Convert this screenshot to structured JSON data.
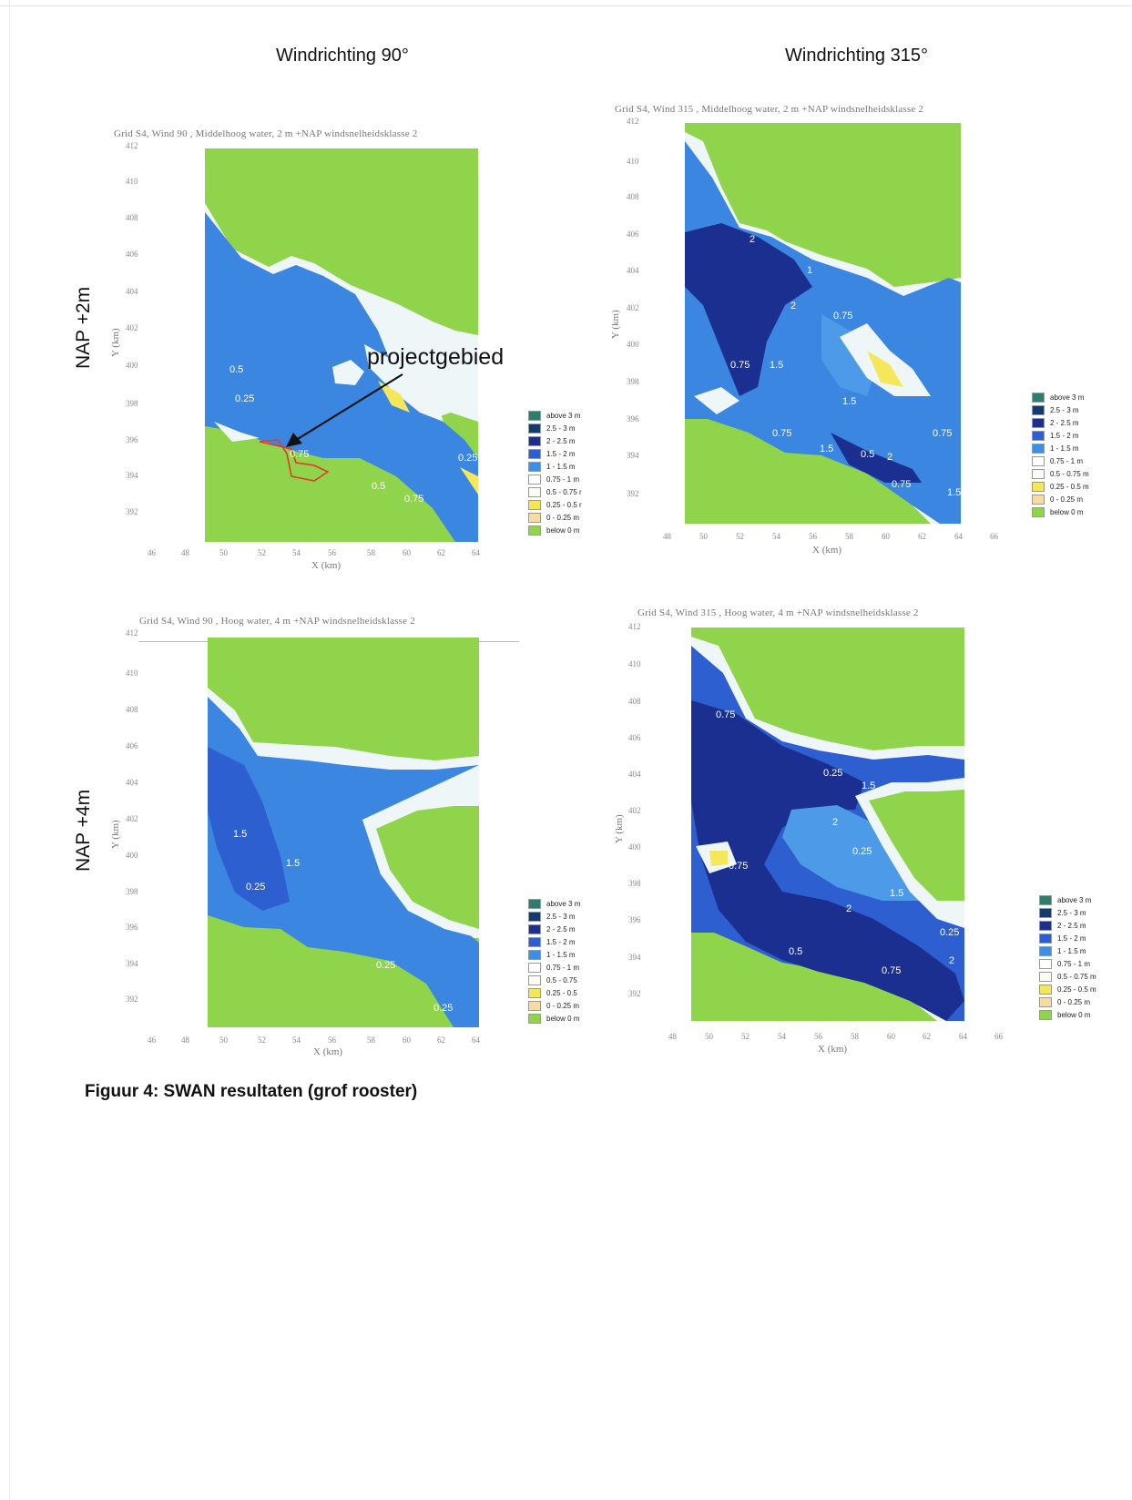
{
  "columns": [
    {
      "title": "Windrichting 90°"
    },
    {
      "title": "Windrichting 315°"
    }
  ],
  "rows": [
    {
      "label": "NAP +2m"
    },
    {
      "label": "NAP +4m"
    }
  ],
  "plots": [
    {
      "title": "Grid S4, Wind 90 , Middelhoog water, 2 m +NAP windsnelheidsklasse 2",
      "yticks": [
        "412",
        "410",
        "408",
        "406",
        "404",
        "402",
        "400",
        "398",
        "396",
        "394",
        "392"
      ],
      "xticks": [
        "46",
        "48",
        "50",
        "52",
        "54",
        "56",
        "58",
        "60",
        "62",
        "64"
      ],
      "xlabel": "X (km)",
      "ylabel": "Y (km)",
      "contour_labels": [
        "0.5",
        "0.25",
        "0.75",
        "0.75",
        "0.25",
        "0.5"
      ]
    },
    {
      "title": "Grid S4, Wind 315 , Middelhoog water, 2 m +NAP windsnelheidsklasse 2",
      "yticks": [
        "412",
        "410",
        "408",
        "406",
        "404",
        "402",
        "400",
        "398",
        "396",
        "394",
        "392"
      ],
      "xticks": [
        "48",
        "50",
        "52",
        "54",
        "56",
        "58",
        "60",
        "62",
        "64",
        "66"
      ],
      "xlabel": "X (km)",
      "ylabel": "Y (km)",
      "contour_labels": [
        "2",
        "1",
        "2",
        "0.75",
        "0.75",
        "1.5",
        "0.75",
        "1.5",
        "2",
        "0.75",
        "1.5",
        "0.75",
        "1.5",
        "0.5"
      ]
    },
    {
      "title": "Grid S4, Wind 90 , Hoog water, 4 m +NAP windsnelheidsklasse 2",
      "yticks": [
        "412",
        "410",
        "408",
        "406",
        "404",
        "402",
        "400",
        "398",
        "396",
        "394",
        "392"
      ],
      "xticks": [
        "46",
        "48",
        "50",
        "52",
        "54",
        "56",
        "58",
        "60",
        "62",
        "64"
      ],
      "xlabel": "X (km)",
      "ylabel": "Y (km)",
      "contour_labels": [
        "1.5",
        "1.5",
        "0.25",
        "0.25",
        "0.25"
      ]
    },
    {
      "title": "Grid S4, Wind 315 , Hoog water, 4 m +NAP windsnelheidsklasse 2",
      "yticks": [
        "412",
        "410",
        "408",
        "406",
        "404",
        "402",
        "400",
        "398",
        "396",
        "394",
        "392"
      ],
      "xticks": [
        "48",
        "50",
        "52",
        "54",
        "56",
        "58",
        "60",
        "62",
        "64",
        "66"
      ],
      "xlabel": "X (km)",
      "ylabel": "Y (km)",
      "contour_labels": [
        "0.75",
        "0.25",
        "1.5",
        "2",
        "0.25",
        "0.75",
        "1.5",
        "2",
        "0.25",
        "0.5",
        "0.75",
        "2"
      ]
    }
  ],
  "legends": [
    [
      "above 3 m",
      "2.5 - 3 m",
      "2 - 2.5 m",
      "1.5 - 2 m",
      "1 - 1.5 m",
      "0.75 - 1 m",
      "0.5 - 0.75 r",
      "0.25 - 0.5 r",
      "0 - 0.25 m",
      "below 0 m"
    ],
    [
      "above 3 m",
      "2.5 - 3 m",
      "2 - 2.5 m",
      "1.5 - 2 m",
      "1 - 1.5 m",
      "0.75 - 1 m",
      "0.5 - 0.75 m",
      "0.25 - 0.5 m",
      "0 - 0.25 m",
      "below 0 m"
    ],
    [
      "above 3 m",
      "2.5 - 3 m",
      "2 - 2.5 m",
      "1.5 - 2 m",
      "1 - 1.5 m",
      "0.75 - 1 m",
      "0.5 - 0.75",
      "0.25 - 0.5",
      "0 - 0.25 m",
      "below 0 m"
    ],
    [
      "above 3 m",
      "2.5 - 3 m",
      "2 - 2.5 m",
      "1.5 - 2 m",
      "1 - 1.5 m",
      "0.75 - 1 m",
      "0.5 - 0.75 m",
      "0.25 - 0.5 m",
      "0 - 0.25 m",
      "below 0 m"
    ]
  ],
  "legend_colors": [
    "#2e7d6d",
    "#143a6e",
    "#1c2f8c",
    "#2d5fd0",
    "#3d8fe6",
    "#ffffff",
    "#fbfbf4",
    "#f4e85a",
    "#f6dca4",
    "#8fd44a"
  ],
  "map_colors": {
    "land": "#8fd44a",
    "shallow": "#eef6f8",
    "mid": "#3a86e0",
    "deep": "#2452c8",
    "deepest": "#1b2f90",
    "sand": "#f4e85a"
  },
  "annotation": {
    "text": "projectgebied"
  },
  "caption": "Figuur 4: SWAN resultaten (grof rooster)"
}
